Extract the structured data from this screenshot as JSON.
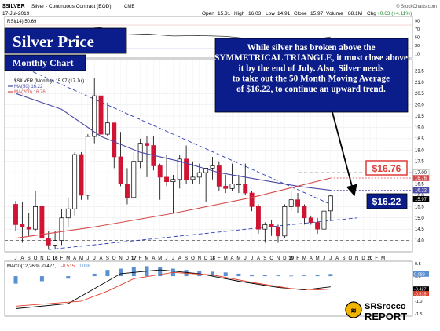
{
  "header": {
    "symbol": "$SILVER",
    "name": "Silver - Continuous Contract (EOD)",
    "exchange": "CME",
    "date": "17-Jul-2019",
    "open_label": "Open",
    "open": "15.31",
    "high_label": "High",
    "high": "16.03",
    "low_label": "Low",
    "low": "14.91",
    "close_label": "Close",
    "close": "15.97",
    "volume_label": "Volume",
    "volume": "88.1M",
    "change_label": "Chg",
    "change": "+0.63 (+4.11%)",
    "copyright": "© StockCharts.com"
  },
  "title_box": {
    "title": "Silver Price",
    "subtitle": "Monthly Chart"
  },
  "annotation": "While silver has broken above the SYMMETRICAL TRIANGLE, it must close above it by the end of July. Also, Silver needs to take out the 50 Month Moving Average of $16.22, to continue an upward trend.",
  "callouts": {
    "ma200": "$16.76",
    "ma50": "$16.22"
  },
  "rsi": {
    "label": "RSI(14) 50.69",
    "value": 50.69,
    "scale": [
      "90",
      "70",
      "50",
      "30",
      "10"
    ]
  },
  "legend": {
    "main": "$SILVER (Monthly) 15.97 (17 Jul)",
    "ma50": "MA(50) 16.22",
    "ma200": "MA(200) 16.76"
  },
  "macd": {
    "label": "MACD(12,26,9) -0.427,",
    "signal_val": "-0.515,",
    "hist_val": "0.088",
    "scale": [
      "0.5",
      "0.0",
      "-0.5",
      "-1.0",
      "-1.5"
    ],
    "flags": {
      "hist": "0.088",
      "macd": "-0.427",
      "signal": "-0.515"
    }
  },
  "logo": {
    "name": "SRSrocco",
    "sub": "REPORT"
  },
  "colors": {
    "up": "#ffffff",
    "down": "#d01433",
    "ma50": "#4a4aa8",
    "ma200": "#d54a4a",
    "trend": "#2c3fb8",
    "box": "#0b1d8a",
    "callout_red": "#e03a3a",
    "macd": "#000000",
    "signal": "#e0402a",
    "hist": "#5a8fd0"
  },
  "chart_data": {
    "type": "candlestick",
    "title": "Silver Price",
    "subtitle": "Monthly Chart",
    "frequency": "monthly",
    "ylim": [
      13.5,
      22.0
    ],
    "y_ticks": [
      "21.5",
      "21.0",
      "20.5",
      "20.0",
      "19.5",
      "19.0",
      "18.5",
      "18.0",
      "17.5",
      "17.0",
      "16.5",
      "16.0",
      "15.5",
      "15.0",
      "14.5",
      "14.0"
    ],
    "x_ticks": [
      "J",
      "A",
      "S",
      "O",
      "N",
      "D",
      "16",
      "F",
      "M",
      "A",
      "M",
      "J",
      "J",
      "A",
      "S",
      "O",
      "N",
      "D",
      "17",
      "F",
      "M",
      "A",
      "M",
      "J",
      "J",
      "A",
      "S",
      "O",
      "N",
      "D",
      "18",
      "F",
      "M",
      "A",
      "M",
      "J",
      "J",
      "A",
      "S",
      "O",
      "N",
      "D",
      "19",
      "F",
      "M",
      "A",
      "M",
      "J",
      "J",
      "A",
      "S",
      "O",
      "N",
      "D",
      "20",
      "F",
      "M"
    ],
    "price_flags": [
      "17.00",
      "16.76",
      "16.22",
      "15.97"
    ],
    "candles": [
      {
        "m": "2015-07",
        "o": 15.6,
        "h": 15.75,
        "l": 14.4,
        "c": 14.7
      },
      {
        "m": "2015-08",
        "o": 14.7,
        "h": 15.7,
        "l": 13.9,
        "c": 14.6
      },
      {
        "m": "2015-09",
        "o": 14.6,
        "h": 15.2,
        "l": 14.2,
        "c": 14.5
      },
      {
        "m": "2015-10",
        "o": 14.5,
        "h": 16.2,
        "l": 14.4,
        "c": 15.5
      },
      {
        "m": "2015-11",
        "o": 15.5,
        "h": 15.7,
        "l": 13.95,
        "c": 14.1
      },
      {
        "m": "2015-12",
        "o": 14.1,
        "h": 14.4,
        "l": 13.6,
        "c": 13.8
      },
      {
        "m": "2016-01",
        "o": 13.8,
        "h": 14.4,
        "l": 13.6,
        "c": 14.0
      },
      {
        "m": "2016-02",
        "o": 14.0,
        "h": 15.4,
        "l": 13.8,
        "c": 15.0
      },
      {
        "m": "2016-03",
        "o": 15.0,
        "h": 15.9,
        "l": 14.6,
        "c": 15.4
      },
      {
        "m": "2016-04",
        "o": 15.4,
        "h": 17.9,
        "l": 15.1,
        "c": 17.8
      },
      {
        "m": "2016-05",
        "o": 17.8,
        "h": 17.9,
        "l": 15.8,
        "c": 16.0
      },
      {
        "m": "2016-06",
        "o": 16.0,
        "h": 18.7,
        "l": 15.8,
        "c": 18.6
      },
      {
        "m": "2016-07",
        "o": 18.6,
        "h": 21.2,
        "l": 18.3,
        "c": 20.4
      },
      {
        "m": "2016-08",
        "o": 20.4,
        "h": 20.8,
        "l": 18.6,
        "c": 18.7
      },
      {
        "m": "2016-09",
        "o": 18.7,
        "h": 20.1,
        "l": 18.6,
        "c": 19.2
      },
      {
        "m": "2016-10",
        "o": 19.2,
        "h": 19.2,
        "l": 17.2,
        "c": 17.7
      },
      {
        "m": "2016-11",
        "o": 17.7,
        "h": 18.8,
        "l": 16.4,
        "c": 16.5
      },
      {
        "m": "2016-12",
        "o": 16.5,
        "h": 17.2,
        "l": 15.6,
        "c": 15.9
      },
      {
        "m": "2017-01",
        "o": 15.9,
        "h": 17.9,
        "l": 15.9,
        "c": 17.5
      },
      {
        "m": "2017-02",
        "o": 17.5,
        "h": 18.5,
        "l": 17.2,
        "c": 18.3
      },
      {
        "m": "2017-03",
        "o": 18.3,
        "h": 18.6,
        "l": 16.8,
        "c": 18.2
      },
      {
        "m": "2017-04",
        "o": 18.2,
        "h": 18.6,
        "l": 17.1,
        "c": 17.3
      },
      {
        "m": "2017-05",
        "o": 17.3,
        "h": 17.4,
        "l": 15.8,
        "c": 16.8
      },
      {
        "m": "2017-06",
        "o": 16.8,
        "h": 17.8,
        "l": 16.4,
        "c": 16.6
      },
      {
        "m": "2017-07",
        "o": 16.6,
        "h": 16.9,
        "l": 15.2,
        "c": 16.7
      },
      {
        "m": "2017-08",
        "o": 16.7,
        "h": 17.8,
        "l": 16.3,
        "c": 17.6
      },
      {
        "m": "2017-09",
        "o": 17.6,
        "h": 18.2,
        "l": 16.5,
        "c": 16.7
      },
      {
        "m": "2017-10",
        "o": 16.7,
        "h": 17.5,
        "l": 16.5,
        "c": 16.8
      },
      {
        "m": "2017-11",
        "o": 16.8,
        "h": 17.4,
        "l": 16.5,
        "c": 17.0
      },
      {
        "m": "2017-12",
        "o": 17.0,
        "h": 17.2,
        "l": 15.7,
        "c": 17.2
      },
      {
        "m": "2018-01",
        "o": 17.2,
        "h": 17.7,
        "l": 16.7,
        "c": 17.3
      },
      {
        "m": "2018-02",
        "o": 17.3,
        "h": 17.5,
        "l": 16.2,
        "c": 16.4
      },
      {
        "m": "2018-03",
        "o": 16.4,
        "h": 16.9,
        "l": 16.1,
        "c": 16.3
      },
      {
        "m": "2018-04",
        "o": 16.3,
        "h": 17.4,
        "l": 16.2,
        "c": 16.5
      },
      {
        "m": "2018-05",
        "o": 16.5,
        "h": 16.9,
        "l": 16.1,
        "c": 16.5
      },
      {
        "m": "2018-06",
        "o": 16.5,
        "h": 17.4,
        "l": 16.0,
        "c": 16.1
      },
      {
        "m": "2018-07",
        "o": 16.1,
        "h": 16.2,
        "l": 15.3,
        "c": 15.5
      },
      {
        "m": "2018-08",
        "o": 15.5,
        "h": 15.6,
        "l": 14.3,
        "c": 14.5
      },
      {
        "m": "2018-09",
        "o": 14.5,
        "h": 14.8,
        "l": 13.9,
        "c": 14.7
      },
      {
        "m": "2018-10",
        "o": 14.7,
        "h": 14.9,
        "l": 14.2,
        "c": 14.6
      },
      {
        "m": "2018-11",
        "o": 14.6,
        "h": 14.7,
        "l": 13.9,
        "c": 14.2
      },
      {
        "m": "2018-12",
        "o": 14.2,
        "h": 15.6,
        "l": 14.1,
        "c": 15.5
      },
      {
        "m": "2019-01",
        "o": 15.5,
        "h": 16.2,
        "l": 15.3,
        "c": 15.8
      },
      {
        "m": "2019-02",
        "o": 15.8,
        "h": 16.1,
        "l": 15.2,
        "c": 15.5
      },
      {
        "m": "2019-03",
        "o": 15.5,
        "h": 15.6,
        "l": 14.7,
        "c": 15.0
      },
      {
        "m": "2019-04",
        "o": 15.0,
        "h": 15.1,
        "l": 14.7,
        "c": 14.8
      },
      {
        "m": "2019-05",
        "o": 14.8,
        "h": 15.0,
        "l": 14.3,
        "c": 14.5
      },
      {
        "m": "2019-06",
        "o": 14.5,
        "h": 15.4,
        "l": 14.3,
        "c": 15.3
      },
      {
        "m": "2019-07",
        "o": 15.31,
        "h": 16.03,
        "l": 14.91,
        "c": 15.97
      }
    ],
    "ma50_points": [
      [
        0,
        20.5
      ],
      [
        7,
        19.8
      ],
      [
        13,
        18.6
      ],
      [
        19,
        17.9
      ],
      [
        25,
        17.5
      ],
      [
        31,
        17.0
      ],
      [
        37,
        16.7
      ],
      [
        43,
        16.4
      ],
      [
        48,
        16.22
      ]
    ],
    "ma200_points": [
      [
        0,
        14.1
      ],
      [
        12,
        14.6
      ],
      [
        24,
        15.2
      ],
      [
        36,
        15.9
      ],
      [
        48,
        16.76
      ]
    ],
    "trendline_upper": [
      [
        0,
        21.8
      ],
      [
        48,
        15.6
      ]
    ],
    "trendline_lower": [
      [
        5,
        13.6
      ],
      [
        52,
        15.0
      ]
    ],
    "support_line": 14.0,
    "resistance_line": 17.0,
    "macd_series": [
      [
        0,
        -1.3
      ],
      [
        8,
        -1.1
      ],
      [
        12,
        -0.5
      ],
      [
        16,
        0.1
      ],
      [
        22,
        0.25
      ],
      [
        28,
        0.1
      ],
      [
        34,
        -0.2
      ],
      [
        40,
        -0.45
      ],
      [
        44,
        -0.55
      ],
      [
        48,
        -0.427
      ]
    ],
    "signal_series": [
      [
        0,
        -1.2
      ],
      [
        10,
        -1.0
      ],
      [
        14,
        -0.6
      ],
      [
        18,
        -0.1
      ],
      [
        24,
        0.15
      ],
      [
        30,
        0.05
      ],
      [
        36,
        -0.25
      ],
      [
        42,
        -0.5
      ],
      [
        46,
        -0.55
      ],
      [
        48,
        -0.515
      ]
    ],
    "hist_series": [
      [
        0,
        -0.3
      ],
      [
        4,
        -0.2
      ],
      [
        8,
        -0.1
      ],
      [
        12,
        0.1
      ],
      [
        14,
        0.25
      ],
      [
        16,
        0.3
      ],
      [
        18,
        0.35
      ],
      [
        20,
        0.4
      ],
      [
        22,
        0.35
      ],
      [
        24,
        0.3
      ],
      [
        26,
        0.25
      ],
      [
        28,
        0.2
      ],
      [
        30,
        0.18
      ],
      [
        32,
        0.15
      ],
      [
        34,
        0.1
      ],
      [
        36,
        0.06
      ],
      [
        38,
        0.04
      ],
      [
        40,
        0.03
      ],
      [
        42,
        0.02
      ],
      [
        44,
        0.03
      ],
      [
        46,
        0.06
      ],
      [
        48,
        0.088
      ]
    ],
    "rsi_series": [
      [
        0,
        37
      ],
      [
        6,
        35
      ],
      [
        8,
        45
      ],
      [
        12,
        72
      ],
      [
        13,
        73
      ],
      [
        16,
        55
      ],
      [
        20,
        58
      ],
      [
        24,
        53
      ],
      [
        28,
        54
      ],
      [
        32,
        52
      ],
      [
        36,
        46
      ],
      [
        40,
        42
      ],
      [
        44,
        48
      ],
      [
        46,
        46
      ],
      [
        48,
        50.69
      ]
    ]
  }
}
